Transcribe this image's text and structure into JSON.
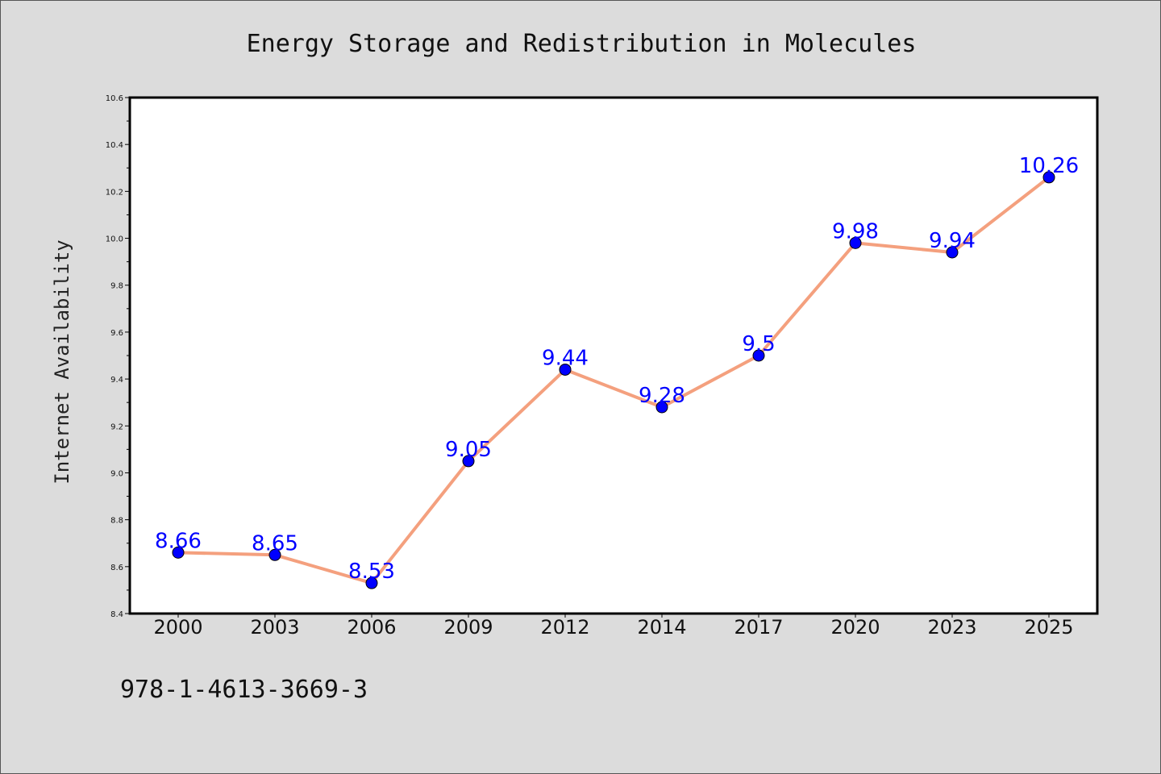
{
  "footer": {
    "code": "978-1-4613-3669-3"
  },
  "colors": {
    "background": "#dcdcdc",
    "plot_background": "#ffffff",
    "line": "#f4a07e",
    "marker": "#0000ff",
    "data_label": "#0000ff"
  },
  "chart_data": {
    "type": "line",
    "title": "Energy Storage and Redistribution in Molecules",
    "xlabel": "",
    "ylabel": "Internet Availability",
    "categories": [
      "2000",
      "2003",
      "2006",
      "2009",
      "2012",
      "2014",
      "2017",
      "2020",
      "2023",
      "2025"
    ],
    "series": [
      {
        "values": [
          8.66,
          8.65,
          8.53,
          9.05,
          9.44,
          9.28,
          9.5,
          9.98,
          9.94,
          10.26
        ]
      }
    ],
    "data_labels": [
      "8.66",
      "8.65",
      "8.53",
      "9.05",
      "9.44",
      "9.28",
      "9.5",
      "9.98",
      "9.94",
      "10.26"
    ],
    "ylim": [
      8.4,
      10.6
    ],
    "yticks": [
      "8.4",
      "8.6",
      "8.8",
      "9.0",
      "9.2",
      "9.4",
      "9.6",
      "9.8",
      "10.0",
      "10.2",
      "10.4",
      "10.6"
    ],
    "grid": false,
    "legend": "none"
  }
}
